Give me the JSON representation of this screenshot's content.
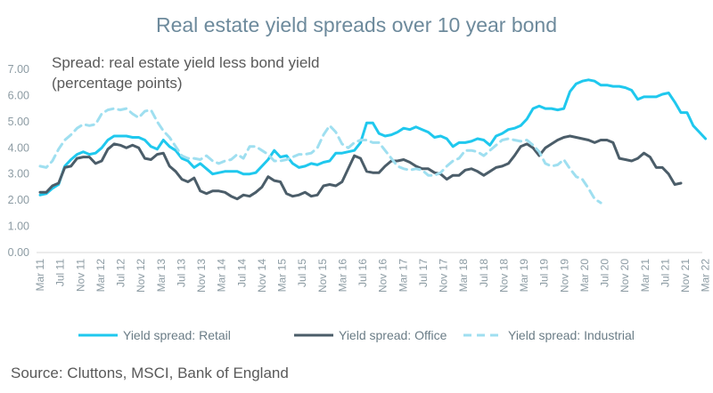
{
  "chart_data": {
    "type": "line",
    "title": "Real estate yield spreads over 10 year bond",
    "subtitle_line1": "Spread: real estate yield less bond yield",
    "subtitle_line2": "(percentage points)",
    "source": "Source: Cluttons, MSCI, Bank of England",
    "xlabel": "",
    "ylabel": "",
    "ylim": [
      0,
      7
    ],
    "y_ticks": [
      "0.00",
      "1.00",
      "2.00",
      "3.00",
      "4.00",
      "5.00",
      "6.00",
      "7.00"
    ],
    "x_tick_labels": [
      "Mar 11",
      "Jul 11",
      "Nov 11",
      "Mar 12",
      "Jul 12",
      "Nov 12",
      "Mar 13",
      "Jul 13",
      "Nov 13",
      "Mar 14",
      "Jul 14",
      "Nov 14",
      "Mar 15",
      "Jul 15",
      "Nov 15",
      "Mar 16",
      "Jul 16",
      "Nov 16",
      "Mar 17",
      "Jul 17",
      "Nov 17",
      "Mar 18",
      "Jul 18",
      "Nov 18",
      "Mar 19",
      "Jul 19",
      "Nov 19",
      "Mar 20",
      "Jul 20",
      "Nov 20",
      "Mar 21",
      "Jul 21",
      "Nov 21",
      "Mar 22"
    ],
    "x_start": "Mar 11",
    "x_end": "Mar 22",
    "grid": false,
    "legend_position": "bottom",
    "series": [
      {
        "name": "Yield spread: Retail",
        "color": "#1fc8ee",
        "style": "solid",
        "anchors": [
          [
            0,
            2.2
          ],
          [
            1,
            2.25
          ],
          [
            2,
            2.45
          ],
          [
            3,
            2.6
          ],
          [
            4,
            3.3
          ],
          [
            5,
            3.55
          ],
          [
            6,
            3.75
          ],
          [
            7,
            3.85
          ],
          [
            8,
            3.75
          ],
          [
            9,
            3.8
          ],
          [
            10,
            4.0
          ],
          [
            11,
            4.3
          ],
          [
            12,
            4.45
          ],
          [
            13,
            4.45
          ],
          [
            14,
            4.45
          ],
          [
            15,
            4.4
          ],
          [
            16,
            4.4
          ],
          [
            17,
            4.3
          ],
          [
            18,
            4.05
          ],
          [
            19,
            3.95
          ],
          [
            20,
            4.3
          ],
          [
            21,
            4.05
          ],
          [
            22,
            3.9
          ],
          [
            23,
            3.6
          ],
          [
            24,
            3.5
          ],
          [
            25,
            3.25
          ],
          [
            26,
            3.4
          ],
          [
            27,
            3.2
          ],
          [
            28,
            3.0
          ],
          [
            30,
            3.1
          ],
          [
            31,
            3.1
          ],
          [
            32,
            3.1
          ],
          [
            33,
            3.0
          ],
          [
            34,
            3.0
          ],
          [
            35,
            3.05
          ],
          [
            36,
            3.3
          ],
          [
            37,
            3.55
          ],
          [
            38,
            3.9
          ],
          [
            39,
            3.65
          ],
          [
            40,
            3.7
          ],
          [
            41,
            3.4
          ],
          [
            42,
            3.25
          ],
          [
            43,
            3.3
          ],
          [
            44,
            3.4
          ],
          [
            45,
            3.35
          ],
          [
            46,
            3.45
          ],
          [
            47,
            3.5
          ],
          [
            48,
            3.8
          ],
          [
            49,
            3.8
          ],
          [
            50,
            3.85
          ],
          [
            51,
            3.9
          ],
          [
            52,
            4.2
          ],
          [
            53,
            4.95
          ],
          [
            54,
            4.95
          ],
          [
            55,
            4.55
          ],
          [
            56,
            4.45
          ],
          [
            57,
            4.5
          ],
          [
            58,
            4.6
          ],
          [
            59,
            4.75
          ],
          [
            60,
            4.7
          ],
          [
            61,
            4.8
          ],
          [
            62,
            4.7
          ],
          [
            63,
            4.6
          ],
          [
            64,
            4.4
          ],
          [
            65,
            4.45
          ],
          [
            66,
            4.35
          ],
          [
            67,
            4.05
          ],
          [
            68,
            4.2
          ],
          [
            69,
            4.2
          ],
          [
            70,
            4.25
          ],
          [
            71,
            4.35
          ],
          [
            72,
            4.3
          ],
          [
            73,
            4.1
          ],
          [
            74,
            4.45
          ],
          [
            75,
            4.55
          ],
          [
            76,
            4.7
          ],
          [
            77,
            4.75
          ],
          [
            78,
            4.85
          ],
          [
            79,
            5.1
          ],
          [
            80,
            5.5
          ],
          [
            81,
            5.6
          ],
          [
            82,
            5.5
          ],
          [
            83,
            5.5
          ],
          [
            84,
            5.45
          ],
          [
            85,
            5.5
          ],
          [
            86,
            6.15
          ],
          [
            87,
            6.45
          ],
          [
            88,
            6.55
          ],
          [
            89,
            6.6
          ],
          [
            90,
            6.55
          ],
          [
            91,
            6.4
          ],
          [
            92,
            6.4
          ],
          [
            93,
            6.35
          ],
          [
            94,
            6.35
          ],
          [
            95,
            6.3
          ],
          [
            96,
            6.2
          ],
          [
            97,
            5.85
          ],
          [
            98,
            5.95
          ],
          [
            99,
            5.95
          ],
          [
            100,
            5.95
          ],
          [
            101,
            6.05
          ],
          [
            102,
            6.1
          ],
          [
            103,
            5.75
          ],
          [
            104,
            5.35
          ],
          [
            105,
            5.35
          ],
          [
            106,
            4.85
          ],
          [
            107,
            4.6
          ],
          [
            108,
            4.35
          ]
        ]
      },
      {
        "name": "Yield spread: Office",
        "color": "#4b5d69",
        "style": "solid",
        "anchors": [
          [
            0,
            2.3
          ],
          [
            1,
            2.3
          ],
          [
            2,
            2.55
          ],
          [
            3,
            2.65
          ],
          [
            4,
            3.25
          ],
          [
            5,
            3.3
          ],
          [
            6,
            3.6
          ],
          [
            7,
            3.65
          ],
          [
            8,
            3.65
          ],
          [
            9,
            3.4
          ],
          [
            10,
            3.5
          ],
          [
            11,
            3.95
          ],
          [
            12,
            4.15
          ],
          [
            13,
            4.1
          ],
          [
            14,
            4.0
          ],
          [
            15,
            4.1
          ],
          [
            16,
            4.0
          ],
          [
            17,
            3.6
          ],
          [
            18,
            3.55
          ],
          [
            19,
            3.75
          ],
          [
            20,
            3.8
          ],
          [
            21,
            3.3
          ],
          [
            22,
            3.1
          ],
          [
            23,
            2.8
          ],
          [
            24,
            2.7
          ],
          [
            25,
            2.85
          ],
          [
            26,
            2.35
          ],
          [
            27,
            2.25
          ],
          [
            28,
            2.35
          ],
          [
            29,
            2.35
          ],
          [
            30,
            2.3
          ],
          [
            31,
            2.15
          ],
          [
            32,
            2.05
          ],
          [
            33,
            2.2
          ],
          [
            34,
            2.15
          ],
          [
            35,
            2.3
          ],
          [
            36,
            2.5
          ],
          [
            37,
            2.9
          ],
          [
            38,
            2.75
          ],
          [
            39,
            2.7
          ],
          [
            40,
            2.25
          ],
          [
            41,
            2.15
          ],
          [
            42,
            2.2
          ],
          [
            43,
            2.3
          ],
          [
            44,
            2.15
          ],
          [
            45,
            2.2
          ],
          [
            46,
            2.55
          ],
          [
            47,
            2.6
          ],
          [
            48,
            2.55
          ],
          [
            49,
            2.7
          ],
          [
            50,
            3.2
          ],
          [
            51,
            3.7
          ],
          [
            52,
            3.6
          ],
          [
            53,
            3.1
          ],
          [
            54,
            3.05
          ],
          [
            55,
            3.05
          ],
          [
            56,
            3.3
          ],
          [
            57,
            3.5
          ],
          [
            58,
            3.5
          ],
          [
            59,
            3.55
          ],
          [
            60,
            3.45
          ],
          [
            61,
            3.3
          ],
          [
            62,
            3.2
          ],
          [
            63,
            3.2
          ],
          [
            64,
            3.05
          ],
          [
            65,
            3.0
          ],
          [
            66,
            2.8
          ],
          [
            67,
            2.95
          ],
          [
            68,
            2.95
          ],
          [
            69,
            3.15
          ],
          [
            70,
            3.2
          ],
          [
            71,
            3.1
          ],
          [
            72,
            2.95
          ],
          [
            73,
            3.1
          ],
          [
            74,
            3.25
          ],
          [
            75,
            3.3
          ],
          [
            76,
            3.4
          ],
          [
            77,
            3.7
          ],
          [
            78,
            4.05
          ],
          [
            79,
            4.15
          ],
          [
            80,
            4.0
          ],
          [
            81,
            3.7
          ],
          [
            82,
            4.0
          ],
          [
            83,
            4.15
          ],
          [
            84,
            4.3
          ],
          [
            85,
            4.4
          ],
          [
            86,
            4.45
          ],
          [
            87,
            4.4
          ],
          [
            88,
            4.35
          ],
          [
            89,
            4.3
          ],
          [
            90,
            4.2
          ],
          [
            91,
            4.3
          ],
          [
            92,
            4.3
          ],
          [
            93,
            4.2
          ],
          [
            94,
            3.6
          ],
          [
            95,
            3.55
          ],
          [
            96,
            3.5
          ],
          [
            97,
            3.6
          ],
          [
            98,
            3.8
          ],
          [
            99,
            3.65
          ],
          [
            100,
            3.25
          ],
          [
            101,
            3.25
          ],
          [
            102,
            3.0
          ],
          [
            103,
            2.6
          ],
          [
            104,
            2.65
          ]
        ]
      },
      {
        "name": "Yield spread: Industrial",
        "color": "#9fdff0",
        "style": "dashed",
        "anchors": [
          [
            0,
            3.3
          ],
          [
            1,
            3.25
          ],
          [
            2,
            3.5
          ],
          [
            3,
            3.95
          ],
          [
            4,
            4.3
          ],
          [
            5,
            4.5
          ],
          [
            6,
            4.75
          ],
          [
            7,
            4.9
          ],
          [
            8,
            4.85
          ],
          [
            9,
            4.9
          ],
          [
            10,
            5.3
          ],
          [
            11,
            5.45
          ],
          [
            12,
            5.5
          ],
          [
            13,
            5.45
          ],
          [
            14,
            5.5
          ],
          [
            15,
            5.3
          ],
          [
            16,
            5.15
          ],
          [
            17,
            5.4
          ],
          [
            18,
            5.45
          ],
          [
            19,
            5.0
          ],
          [
            20,
            4.65
          ],
          [
            21,
            4.4
          ],
          [
            22,
            4.05
          ],
          [
            23,
            3.7
          ],
          [
            24,
            3.6
          ],
          [
            25,
            3.6
          ],
          [
            26,
            3.55
          ],
          [
            27,
            3.7
          ],
          [
            28,
            3.5
          ],
          [
            29,
            3.4
          ],
          [
            30,
            3.5
          ],
          [
            31,
            3.55
          ],
          [
            32,
            3.75
          ],
          [
            33,
            3.6
          ],
          [
            34,
            4.05
          ],
          [
            35,
            4.05
          ],
          [
            36,
            3.9
          ],
          [
            37,
            3.75
          ],
          [
            38,
            3.5
          ],
          [
            39,
            3.5
          ],
          [
            40,
            3.55
          ],
          [
            41,
            3.65
          ],
          [
            42,
            3.75
          ],
          [
            43,
            3.75
          ],
          [
            44,
            3.8
          ],
          [
            45,
            4.0
          ],
          [
            46,
            4.5
          ],
          [
            47,
            4.85
          ],
          [
            48,
            4.6
          ],
          [
            49,
            4.15
          ],
          [
            50,
            4.0
          ],
          [
            51,
            4.2
          ],
          [
            52,
            4.3
          ],
          [
            53,
            4.3
          ],
          [
            54,
            4.2
          ],
          [
            55,
            4.2
          ],
          [
            56,
            3.9
          ],
          [
            57,
            3.6
          ],
          [
            58,
            3.3
          ],
          [
            59,
            3.2
          ],
          [
            60,
            3.15
          ],
          [
            61,
            3.2
          ],
          [
            62,
            3.15
          ],
          [
            63,
            2.95
          ],
          [
            64,
            2.95
          ],
          [
            65,
            3.05
          ],
          [
            66,
            3.3
          ],
          [
            67,
            3.5
          ],
          [
            68,
            3.6
          ],
          [
            69,
            3.9
          ],
          [
            70,
            3.9
          ],
          [
            71,
            3.85
          ],
          [
            72,
            3.7
          ],
          [
            73,
            3.9
          ],
          [
            74,
            4.1
          ],
          [
            75,
            4.3
          ],
          [
            76,
            4.35
          ],
          [
            77,
            4.3
          ],
          [
            78,
            4.25
          ],
          [
            79,
            4.3
          ],
          [
            80,
            4.1
          ],
          [
            81,
            3.85
          ],
          [
            82,
            3.4
          ],
          [
            83,
            3.3
          ],
          [
            84,
            3.35
          ],
          [
            85,
            3.55
          ],
          [
            86,
            3.2
          ],
          [
            87,
            2.9
          ],
          [
            88,
            2.8
          ],
          [
            89,
            2.45
          ],
          [
            90,
            2.05
          ],
          [
            91,
            1.9
          ]
        ]
      }
    ]
  }
}
